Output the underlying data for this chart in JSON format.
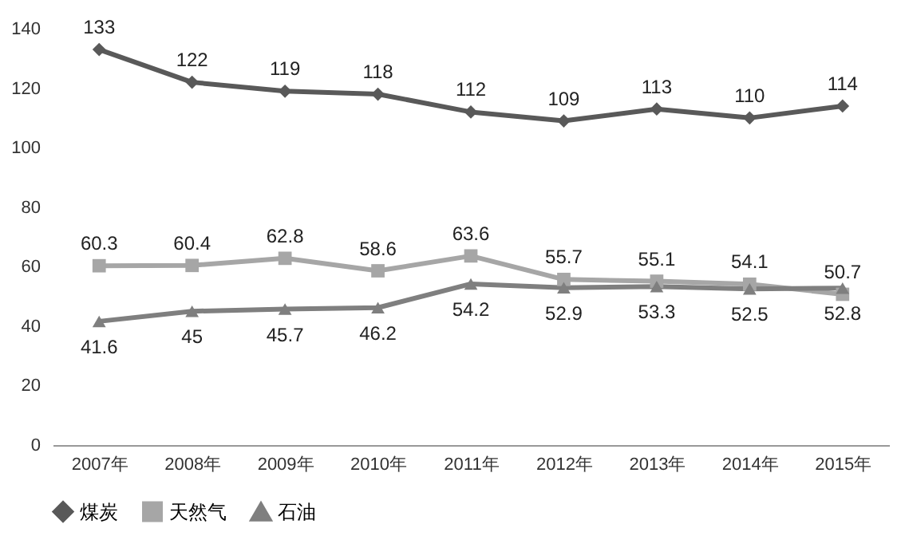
{
  "chart_data": {
    "type": "line",
    "categories": [
      "2007年",
      "2008年",
      "2009年",
      "2010年",
      "2011年",
      "2012年",
      "2013年",
      "2014年",
      "2015年"
    ],
    "series": [
      {
        "name": "煤炭",
        "color": "#595959",
        "marker": "diamond",
        "values": [
          133,
          122,
          119,
          118,
          112,
          109,
          113,
          110,
          114
        ]
      },
      {
        "name": "天然气",
        "color": "#a6a6a6",
        "marker": "square",
        "values": [
          60.3,
          60.4,
          62.8,
          58.6,
          63.6,
          55.7,
          55.1,
          54.1,
          50.7
        ]
      },
      {
        "name": "石油",
        "color": "#7f7f7f",
        "marker": "triangle",
        "values": [
          41.6,
          45,
          45.7,
          46.2,
          54.2,
          52.9,
          53.3,
          52.5,
          52.8
        ]
      }
    ],
    "ylim": [
      0,
      140
    ],
    "yticks": [
      0,
      20,
      40,
      60,
      80,
      100,
      120,
      140
    ],
    "grid": false,
    "legend": "bottom",
    "data_labels": true
  }
}
